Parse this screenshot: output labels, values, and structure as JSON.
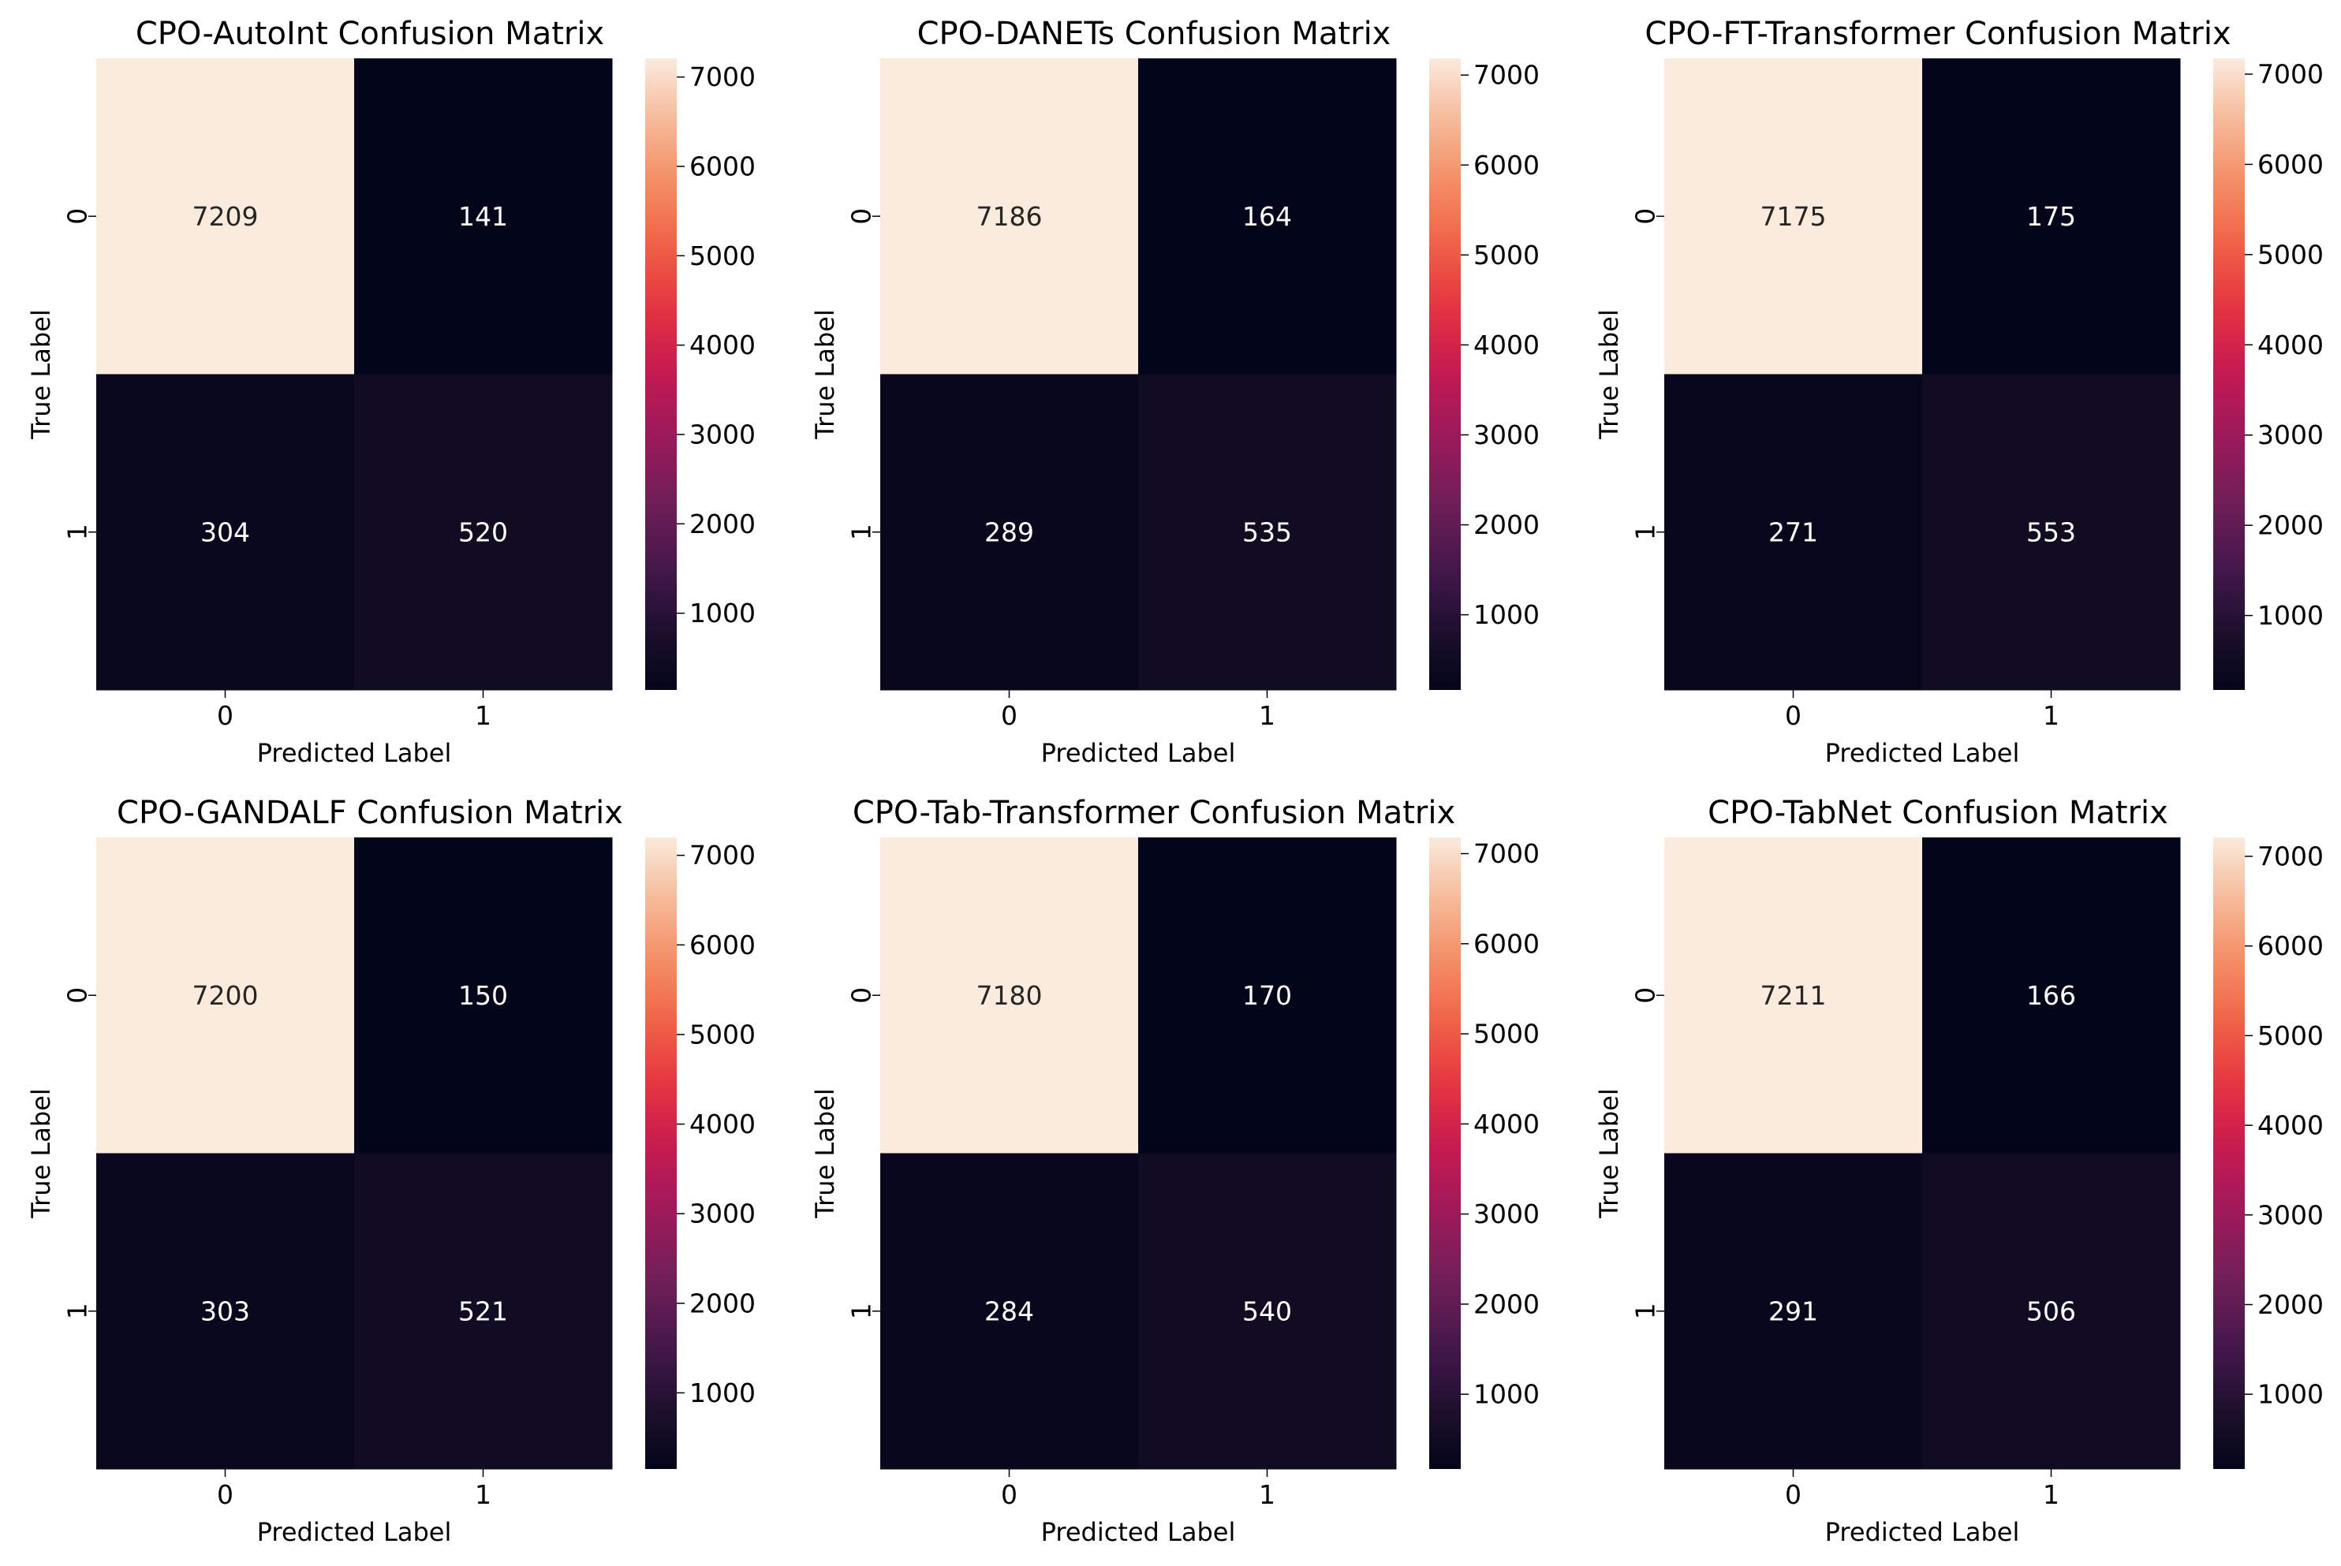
{
  "figure": {
    "background": "#ffffff"
  },
  "chart_data": [
    {
      "type": "heatmap",
      "title": "CPO-AutoInt Confusion Matrix",
      "xlabel": "Predicted Label",
      "ylabel": "True Label",
      "x_categories": [
        "0",
        "1"
      ],
      "y_categories": [
        "0",
        "1"
      ],
      "values": [
        [
          7209,
          141
        ],
        [
          304,
          520
        ]
      ],
      "colorbar_ticks": [
        "1000",
        "2000",
        "3000",
        "4000",
        "5000",
        "6000",
        "7000"
      ],
      "colormap": "rocket"
    },
    {
      "type": "heatmap",
      "title": "CPO-DANETs Confusion Matrix",
      "xlabel": "Predicted Label",
      "ylabel": "True Label",
      "x_categories": [
        "0",
        "1"
      ],
      "y_categories": [
        "0",
        "1"
      ],
      "values": [
        [
          7186,
          164
        ],
        [
          289,
          535
        ]
      ],
      "colorbar_ticks": [
        "1000",
        "2000",
        "3000",
        "4000",
        "5000",
        "6000",
        "7000"
      ],
      "colormap": "rocket"
    },
    {
      "type": "heatmap",
      "title": "CPO-FT-Transformer Confusion Matrix",
      "xlabel": "Predicted Label",
      "ylabel": "True Label",
      "x_categories": [
        "0",
        "1"
      ],
      "y_categories": [
        "0",
        "1"
      ],
      "values": [
        [
          7175,
          175
        ],
        [
          271,
          553
        ]
      ],
      "colorbar_ticks": [
        "1000",
        "2000",
        "3000",
        "4000",
        "5000",
        "6000",
        "7000"
      ],
      "colormap": "rocket"
    },
    {
      "type": "heatmap",
      "title": "CPO-GANDALF Confusion Matrix",
      "xlabel": "Predicted Label",
      "ylabel": "True Label",
      "x_categories": [
        "0",
        "1"
      ],
      "y_categories": [
        "0",
        "1"
      ],
      "values": [
        [
          7200,
          150
        ],
        [
          303,
          521
        ]
      ],
      "colorbar_ticks": [
        "1000",
        "2000",
        "3000",
        "4000",
        "5000",
        "6000",
        "7000"
      ],
      "colormap": "rocket"
    },
    {
      "type": "heatmap",
      "title": "CPO-Tab-Transformer Confusion Matrix",
      "xlabel": "Predicted Label",
      "ylabel": "True Label",
      "x_categories": [
        "0",
        "1"
      ],
      "y_categories": [
        "0",
        "1"
      ],
      "values": [
        [
          7180,
          170
        ],
        [
          284,
          540
        ]
      ],
      "colorbar_ticks": [
        "1000",
        "2000",
        "3000",
        "4000",
        "5000",
        "6000",
        "7000"
      ],
      "colormap": "rocket"
    },
    {
      "type": "heatmap",
      "title": "CPO-TabNet Confusion Matrix",
      "xlabel": "Predicted Label",
      "ylabel": "True Label",
      "x_categories": [
        "0",
        "1"
      ],
      "y_categories": [
        "0",
        "1"
      ],
      "values": [
        [
          7211,
          166
        ],
        [
          291,
          506
        ]
      ],
      "colorbar_ticks": [
        "1000",
        "2000",
        "3000",
        "4000",
        "5000",
        "6000",
        "7000"
      ],
      "colormap": "rocket"
    }
  ]
}
